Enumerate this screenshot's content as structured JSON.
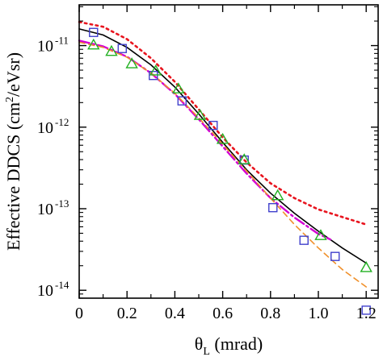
{
  "chart_data": {
    "type": "line",
    "title": "",
    "xlabel": {
      "main": "θ",
      "sub": "L",
      "rest": " (mrad)"
    },
    "ylabel": {
      "main": "Effective DDCS (cm",
      "sup": "2",
      "rest": "/eVsr)"
    },
    "xlim": [
      0,
      1.25
    ],
    "ylim": [
      8e-15,
      3.16e-11
    ],
    "yscale": "log",
    "grid": false,
    "legend": "none",
    "x_ticks": [
      {
        "value": 0,
        "label": "0"
      },
      {
        "value": 0.2,
        "label": "0.2"
      },
      {
        "value": 0.4,
        "label": "0.4"
      },
      {
        "value": 0.6,
        "label": "0.6"
      },
      {
        "value": 0.8,
        "label": "0.8"
      },
      {
        "value": 1.0,
        "label": "1.0"
      },
      {
        "value": 1.2,
        "label": "1.2"
      }
    ],
    "y_ticks": [
      {
        "value": 1e-11,
        "base": "10",
        "exp": "-11"
      },
      {
        "value": 1e-12,
        "base": "10",
        "exp": "-12"
      },
      {
        "value": 1e-13,
        "base": "10",
        "exp": "-13"
      },
      {
        "value": 1e-14,
        "base": "10",
        "exp": "-14"
      }
    ],
    "series": [
      {
        "style": "solid",
        "color": "#000000",
        "kind": "line",
        "x": [
          0,
          0.1,
          0.2,
          0.3,
          0.4,
          0.5,
          0.6,
          0.7,
          0.8,
          0.9,
          1.0,
          1.1,
          1.2
        ],
        "y": [
          1.6e-11,
          1.35e-11,
          9.5e-12,
          5.8e-12,
          3.1e-12,
          1.45e-12,
          6.5e-13,
          3e-13,
          1.55e-13,
          8.8e-14,
          5.3e-14,
          3.3e-14,
          2.15e-14
        ]
      },
      {
        "style": "dotted",
        "color": "#e8141e",
        "kind": "line",
        "x": [
          0,
          0.1,
          0.2,
          0.3,
          0.4,
          0.5,
          0.6,
          0.7,
          0.8,
          0.9,
          1.0,
          1.1,
          1.2
        ],
        "y": [
          1.95e-11,
          1.7e-11,
          1.2e-11,
          7e-12,
          3.6e-12,
          1.65e-12,
          7.5e-13,
          3.7e-13,
          2.05e-13,
          1.35e-13,
          9.8e-14,
          7.9e-14,
          6.4e-14
        ]
      },
      {
        "style": "dashdot",
        "color": "#d400d4",
        "kind": "line",
        "x": [
          0,
          0.1,
          0.2,
          0.3,
          0.4,
          0.5,
          0.6,
          0.7,
          0.8,
          0.9,
          1.0,
          1.05
        ],
        "y": [
          1.15e-11,
          9.8e-12,
          7.3e-12,
          4.6e-12,
          2.55e-12,
          1.25e-12,
          5.8e-13,
          2.7e-13,
          1.35e-13,
          7.8e-14,
          4.9e-14,
          4.2e-14
        ]
      },
      {
        "style": "dashed",
        "color": "#f0902a",
        "kind": "line",
        "x": [
          0,
          0.1,
          0.2,
          0.3,
          0.4,
          0.5,
          0.6,
          0.7,
          0.8,
          0.9,
          1.0,
          1.1,
          1.2
        ],
        "y": [
          1.1e-11,
          9.5e-12,
          7.2e-12,
          4.6e-12,
          2.6e-12,
          1.3e-12,
          6.2e-13,
          2.9e-13,
          1.35e-13,
          6.4e-14,
          3.3e-14,
          1.8e-14,
          1.1e-14
        ]
      },
      {
        "kind": "markers",
        "marker": "square",
        "color": "#4040cc",
        "x": [
          0.06,
          0.18,
          0.31,
          0.43,
          0.56,
          0.69,
          0.81,
          0.94,
          1.07,
          1.2
        ],
        "y": [
          1.45e-11,
          9.2e-12,
          4.3e-12,
          2.1e-12,
          1.05e-12,
          3.95e-13,
          1.03e-13,
          4.1e-14,
          2.6e-14,
          5.7e-15
        ]
      },
      {
        "kind": "markers",
        "marker": "triangle",
        "color": "#22b022",
        "x": [
          0.06,
          0.135,
          0.22,
          0.32,
          0.415,
          0.505,
          0.6,
          0.69,
          0.83,
          1.01,
          1.2
        ],
        "y": [
          1.02e-11,
          8.5e-12,
          6e-12,
          4.9e-12,
          2.95e-12,
          1.4e-12,
          7.1e-13,
          4e-13,
          1.45e-13,
          4.7e-14,
          1.9e-14
        ]
      }
    ]
  }
}
